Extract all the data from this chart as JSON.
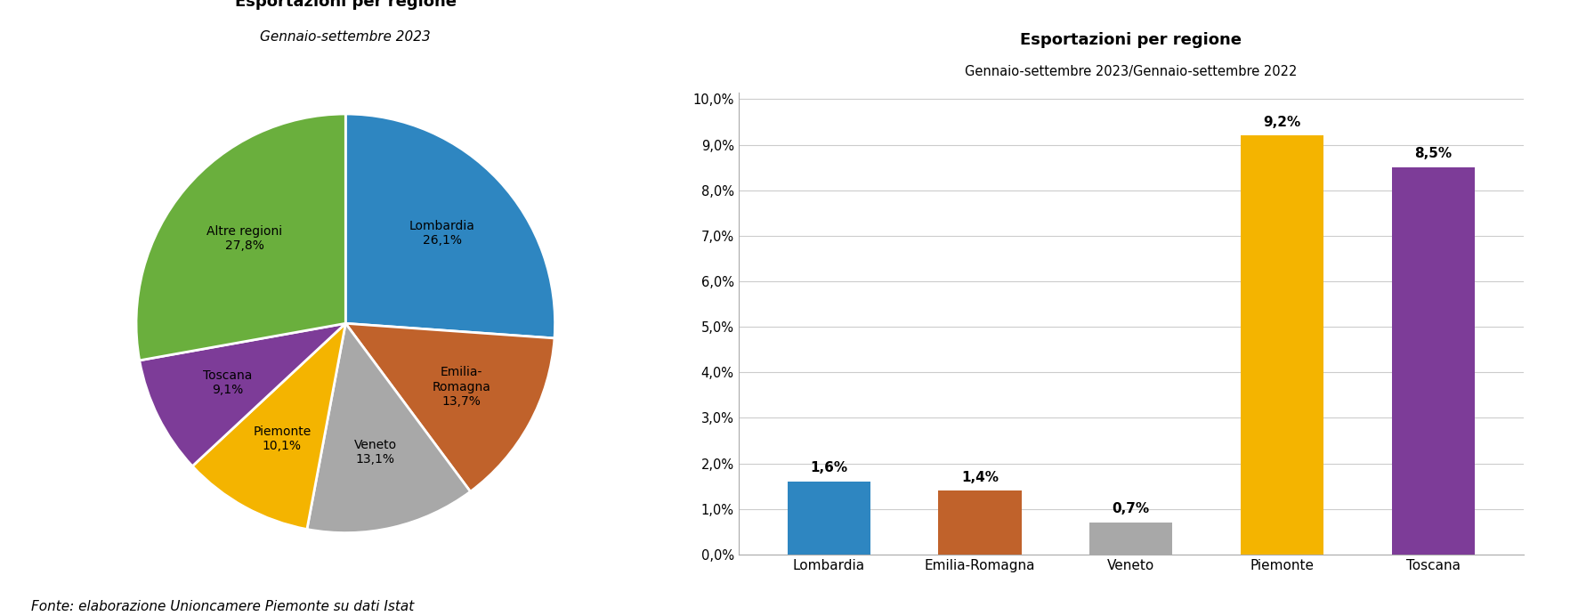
{
  "pie_title": "Esportazioni per regione",
  "pie_subtitle": "Gennaio-settembre 2023",
  "pie_labels_clean": [
    "Lombardia",
    "Emilia-\nRomagna",
    "Veneto",
    "Piemonte",
    "Toscana",
    "Altre regioni"
  ],
  "pie_pct": [
    26.1,
    13.7,
    13.1,
    10.1,
    9.1,
    27.8
  ],
  "pie_pct_labels": [
    "26,1%",
    "13,7%",
    "13,1%",
    "10,1%",
    "9,1%",
    "27,8%"
  ],
  "pie_colors": [
    "#2E86C1",
    "#C0622B",
    "#A8A8A8",
    "#F4B400",
    "#7D3C98",
    "#6AAF3D"
  ],
  "bar_title": "Esportazioni per regione",
  "bar_subtitle": "Gennaio-settembre 2023/Gennaio-settembre 2022",
  "bar_categories": [
    "Lombardia",
    "Emilia-Romagna",
    "Veneto",
    "Piemonte",
    "Toscana"
  ],
  "bar_values": [
    1.6,
    1.4,
    0.7,
    9.2,
    8.5
  ],
  "bar_pct_labels": [
    "1,6%",
    "1,4%",
    "0,7%",
    "9,2%",
    "8,5%"
  ],
  "bar_colors": [
    "#2E86C1",
    "#C0622B",
    "#A8A8A8",
    "#F4B400",
    "#7D3C98"
  ],
  "bar_ylim": [
    0,
    10.0
  ],
  "bar_yticks": [
    0.0,
    1.0,
    2.0,
    3.0,
    4.0,
    5.0,
    6.0,
    7.0,
    8.0,
    9.0,
    10.0
  ],
  "bar_ytick_labels": [
    "0,0%",
    "1,0%",
    "2,0%",
    "3,0%",
    "4,0%",
    "5,0%",
    "6,0%",
    "7,0%",
    "8,0%",
    "9,0%",
    "10,0%"
  ],
  "footer": "Fonte: elaborazione Unioncamere Piemonte su dati Istat",
  "background_color": "#FFFFFF"
}
